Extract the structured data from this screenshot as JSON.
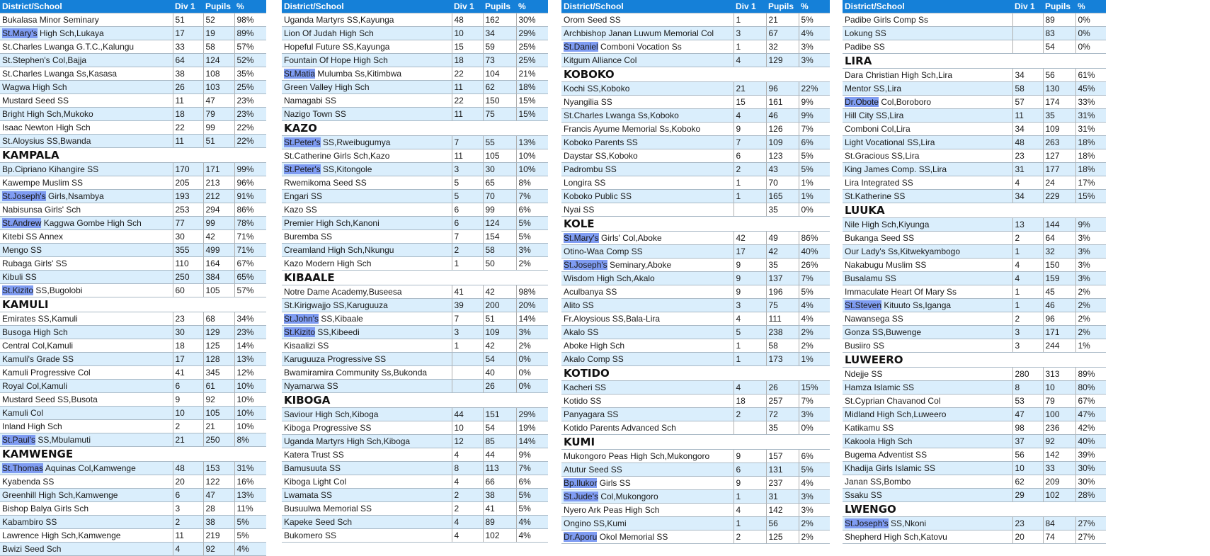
{
  "header": {
    "school": "District/School",
    "div1": "Div 1",
    "pupils": "Pupils",
    "pct": "%"
  },
  "columns": [
    [
      {
        "r": [
          "Bukalasa Minor Seminary",
          "51",
          "52",
          "98%"
        ]
      },
      {
        "r": [
          "St.Mary's",
          "High Sch,Lukaya",
          "17",
          "19",
          "89%"
        ]
      },
      {
        "r": [
          "St.Charles Lwanga G.T.C.,Kalungu",
          "33",
          "58",
          "57%"
        ]
      },
      {
        "r": [
          "St.Stephen's Col,Bajja",
          "64",
          "124",
          "52%"
        ]
      },
      {
        "r": [
          "St.Charles Lwanga Ss,Kasasa",
          "38",
          "108",
          "35%"
        ]
      },
      {
        "r": [
          "Wagwa High Sch",
          "26",
          "103",
          "25%"
        ]
      },
      {
        "r": [
          "Mustard Seed SS",
          "11",
          "47",
          "23%"
        ]
      },
      {
        "r": [
          "Bright High Sch,Mukoko",
          "18",
          "79",
          "23%"
        ]
      },
      {
        "r": [
          "Isaac Newton High Sch",
          "22",
          "99",
          "22%"
        ]
      },
      {
        "r": [
          "St.Aloysius SS,Bwanda",
          "11",
          "51",
          "22%"
        ]
      },
      {
        "d": "KAMPALA"
      },
      {
        "r": [
          "Bp.Cipriano Kihangire SS",
          "170",
          "171",
          "99%"
        ]
      },
      {
        "r": [
          "Kawempe Muslim SS",
          "205",
          "213",
          "96%"
        ]
      },
      {
        "r": [
          "St.Joseph's",
          "Girls,Nsambya",
          "193",
          "212",
          "91%"
        ]
      },
      {
        "r": [
          "Nabisunsa Girls' Sch",
          "253",
          "294",
          "86%"
        ]
      },
      {
        "r": [
          "St.Andrew",
          "Kaggwa Gombe High Sch",
          "77",
          "99",
          "78%"
        ]
      },
      {
        "r": [
          "Kitebi SS Annex",
          "30",
          "42",
          "71%"
        ]
      },
      {
        "r": [
          "Mengo SS",
          "355",
          "499",
          "71%"
        ]
      },
      {
        "r": [
          "Rubaga Girls' SS",
          "110",
          "164",
          "67%"
        ]
      },
      {
        "r": [
          "Kibuli SS",
          "250",
          "384",
          "65%"
        ]
      },
      {
        "r": [
          "St.Kizito",
          "SS,Bugolobi",
          "60",
          "105",
          "57%"
        ]
      },
      {
        "d": "KAMULI"
      },
      {
        "r": [
          "Emirates SS,Kamuli",
          "23",
          "68",
          "34%"
        ]
      },
      {
        "r": [
          "Busoga High Sch",
          "30",
          "129",
          "23%"
        ]
      },
      {
        "r": [
          "Central Col,Kamuli",
          "18",
          "125",
          "14%"
        ]
      },
      {
        "r": [
          "Kamuli's Grade SS",
          "17",
          "128",
          "13%"
        ]
      },
      {
        "r": [
          "Kamuli Progressive Col",
          "41",
          "345",
          "12%"
        ]
      },
      {
        "r": [
          "Royal Col,Kamuli",
          "6",
          "61",
          "10%"
        ]
      },
      {
        "r": [
          "Mustard Seed SS,Busota",
          "9",
          "92",
          "10%"
        ]
      },
      {
        "r": [
          "Kamuli Col",
          "10",
          "105",
          "10%"
        ]
      },
      {
        "r": [
          "Inland High Sch",
          "2",
          "21",
          "10%"
        ]
      },
      {
        "r": [
          "St.Paul's",
          "SS,Mbulamuti",
          "21",
          "250",
          "8%"
        ]
      },
      {
        "d": "KAMWENGE"
      },
      {
        "r": [
          "St.Thomas",
          "Aquinas Col,Kamwenge",
          "48",
          "153",
          "31%"
        ]
      },
      {
        "r": [
          "Kyabenda SS",
          "20",
          "122",
          "16%"
        ]
      },
      {
        "r": [
          "Greenhill High Sch,Kamwenge",
          "6",
          "47",
          "13%"
        ]
      },
      {
        "r": [
          "Bishop Balya Girls Sch",
          "3",
          "28",
          "11%"
        ]
      },
      {
        "r": [
          "Kabambiro SS",
          "2",
          "38",
          "5%"
        ]
      },
      {
        "r": [
          "Lawrence High Sch,Kamwenge",
          "11",
          "219",
          "5%"
        ]
      },
      {
        "r": [
          "Bwizi Seed Sch",
          "4",
          "92",
          "4%"
        ]
      }
    ],
    [
      {
        "r": [
          "Uganda Martyrs SS,Kayunga",
          "48",
          "162",
          "30%"
        ]
      },
      {
        "r": [
          "Lion Of Judah High Sch",
          "10",
          "34",
          "29%"
        ]
      },
      {
        "r": [
          "Hopeful Future SS,Kayunga",
          "15",
          "59",
          "25%"
        ]
      },
      {
        "r": [
          "Fountain Of Hope High Sch",
          "18",
          "73",
          "25%"
        ]
      },
      {
        "r": [
          "St.Matia",
          "Mulumba Ss,Kitimbwa",
          "22",
          "104",
          "21%"
        ]
      },
      {
        "r": [
          "Green Valley High Sch",
          "11",
          "62",
          "18%"
        ]
      },
      {
        "r": [
          "Namagabi SS",
          "22",
          "150",
          "15%"
        ]
      },
      {
        "r": [
          "Nazigo Town SS",
          "11",
          "75",
          "15%"
        ]
      },
      {
        "d": "KAZO"
      },
      {
        "r": [
          "St.Peter's",
          "SS,Rweibugumya",
          "7",
          "55",
          "13%"
        ]
      },
      {
        "r": [
          "St.Catherine Girls Sch,Kazo",
          "11",
          "105",
          "10%"
        ]
      },
      {
        "r": [
          "St.Peter's",
          "SS,Kitongole",
          "3",
          "30",
          "10%"
        ]
      },
      {
        "r": [
          "Rwemikoma Seed SS",
          "5",
          "65",
          "8%"
        ]
      },
      {
        "r": [
          "Engari SS",
          "5",
          "70",
          "7%"
        ]
      },
      {
        "r": [
          "Kazo SS",
          "6",
          "99",
          "6%"
        ]
      },
      {
        "r": [
          "Premier High Sch,Kanoni",
          "6",
          "124",
          "5%"
        ]
      },
      {
        "r": [
          "Buremba SS",
          "7",
          "154",
          "5%"
        ]
      },
      {
        "r": [
          "Creamland High Sch,Nkungu",
          "2",
          "58",
          "3%"
        ]
      },
      {
        "r": [
          "Kazo Modern High Sch",
          "1",
          "50",
          "2%"
        ]
      },
      {
        "d": "KIBAALE"
      },
      {
        "r": [
          "Notre Dame Academy,Buseesa",
          "41",
          "42",
          "98%"
        ]
      },
      {
        "r": [
          "St.Kirigwajjo SS,Karuguuza",
          "39",
          "200",
          "20%"
        ]
      },
      {
        "r": [
          "St.John's",
          "SS,Kibaale",
          "7",
          "51",
          "14%"
        ]
      },
      {
        "r": [
          "St.Kizito",
          "SS,Kibeedi",
          "3",
          "109",
          "3%"
        ]
      },
      {
        "r": [
          "Kisaalizi SS",
          "1",
          "42",
          "2%"
        ]
      },
      {
        "r": [
          "Karuguuza Progressive SS",
          "",
          "54",
          "0%"
        ]
      },
      {
        "r": [
          "Bwamiramira Community Ss,Bukonda",
          "",
          "40",
          "0%"
        ]
      },
      {
        "r": [
          "Nyamarwa SS",
          "",
          "26",
          "0%"
        ]
      },
      {
        "d": "KIBOGA"
      },
      {
        "r": [
          "Saviour High Sch,Kiboga",
          "44",
          "151",
          "29%"
        ]
      },
      {
        "r": [
          "Kiboga Progressive SS",
          "10",
          "54",
          "19%"
        ]
      },
      {
        "r": [
          "Uganda Martyrs High Sch,Kiboga",
          "12",
          "85",
          "14%"
        ]
      },
      {
        "r": [
          "Katera Trust SS",
          "4",
          "44",
          "9%"
        ]
      },
      {
        "r": [
          "Bamusuuta SS",
          "8",
          "113",
          "7%"
        ]
      },
      {
        "r": [
          "Kiboga Light Col",
          "4",
          "66",
          "6%"
        ]
      },
      {
        "r": [
          "Lwamata SS",
          "2",
          "38",
          "5%"
        ]
      },
      {
        "r": [
          "Busuulwa Memorial SS",
          "2",
          "41",
          "5%"
        ]
      },
      {
        "r": [
          "Kapeke Seed Sch",
          "4",
          "89",
          "4%"
        ]
      },
      {
        "r": [
          "Bukomero SS",
          "4",
          "102",
          "4%"
        ]
      }
    ],
    [
      {
        "r": [
          "Orom Seed SS",
          "1",
          "21",
          "5%"
        ]
      },
      {
        "r": [
          "Archbishop Janan Luwum Memorial Col",
          "3",
          "67",
          "4%"
        ]
      },
      {
        "r": [
          "St.Daniel",
          "Comboni Vocation Ss",
          "1",
          "32",
          "3%"
        ]
      },
      {
        "r": [
          "Kitgum Alliance Col",
          "4",
          "129",
          "3%"
        ]
      },
      {
        "d": "KOBOKO"
      },
      {
        "r": [
          "Kochi SS,Koboko",
          "21",
          "96",
          "22%"
        ]
      },
      {
        "r": [
          "Nyangilia SS",
          "15",
          "161",
          "9%"
        ]
      },
      {
        "r": [
          "St.Charles Lwanga Ss,Koboko",
          "4",
          "46",
          "9%"
        ]
      },
      {
        "r": [
          "Francis Ayume Memorial Ss,Koboko",
          "9",
          "126",
          "7%"
        ]
      },
      {
        "r": [
          "Koboko Parents SS",
          "7",
          "109",
          "6%"
        ]
      },
      {
        "r": [
          "Daystar SS,Koboko",
          "6",
          "123",
          "5%"
        ]
      },
      {
        "r": [
          "Padrombu SS",
          "2",
          "43",
          "5%"
        ]
      },
      {
        "r": [
          "Longira SS",
          "1",
          "70",
          "1%"
        ]
      },
      {
        "r": [
          "Koboko Public SS",
          "1",
          "165",
          "1%"
        ]
      },
      {
        "r": [
          "Nyai SS",
          "",
          "35",
          "0%"
        ]
      },
      {
        "d": "KOLE"
      },
      {
        "r": [
          "St.Mary's",
          "Girls' Col,Aboke",
          "42",
          "49",
          "86%"
        ]
      },
      {
        "r": [
          "Otino-Waa Comp SS",
          "17",
          "42",
          "40%"
        ]
      },
      {
        "r": [
          "St.Joseph's",
          "Seminary,Aboke",
          "9",
          "35",
          "26%"
        ]
      },
      {
        "r": [
          "Wisdom High Sch,Akalo",
          "9",
          "137",
          "7%"
        ]
      },
      {
        "r": [
          "Aculbanya SS",
          "9",
          "196",
          "5%"
        ]
      },
      {
        "r": [
          "Alito SS",
          "3",
          "75",
          "4%"
        ]
      },
      {
        "r": [
          "Fr.Aloysious SS,Bala-Lira",
          "4",
          "111",
          "4%"
        ]
      },
      {
        "r": [
          "Akalo SS",
          "5",
          "238",
          "2%"
        ]
      },
      {
        "r": [
          "Aboke High Sch",
          "1",
          "58",
          "2%"
        ]
      },
      {
        "r": [
          "Akalo Comp SS",
          "1",
          "173",
          "1%"
        ]
      },
      {
        "d": "KOTIDO"
      },
      {
        "r": [
          "Kacheri SS",
          "4",
          "26",
          "15%"
        ]
      },
      {
        "r": [
          "Kotido SS",
          "18",
          "257",
          "7%"
        ]
      },
      {
        "r": [
          "Panyagara SS",
          "2",
          "72",
          "3%"
        ]
      },
      {
        "r": [
          "Kotido Parents Advanced Sch",
          "",
          "35",
          "0%"
        ]
      },
      {
        "d": "KUMI"
      },
      {
        "r": [
          "Mukongoro Peas High Sch,Mukongoro",
          "9",
          "157",
          "6%"
        ]
      },
      {
        "r": [
          "Atutur Seed SS",
          "6",
          "131",
          "5%"
        ]
      },
      {
        "r": [
          "Bp.Ilukor",
          "Girls SS",
          "9",
          "237",
          "4%"
        ]
      },
      {
        "r": [
          "St.Jude's",
          "Col,Mukongoro",
          "1",
          "31",
          "3%"
        ]
      },
      {
        "r": [
          "Nyero Ark Peas High Sch",
          "4",
          "142",
          "3%"
        ]
      },
      {
        "r": [
          "Ongino SS,Kumi",
          "1",
          "56",
          "2%"
        ]
      },
      {
        "r": [
          "Dr.Aporu",
          "Okol Memorial SS",
          "2",
          "125",
          "2%"
        ]
      }
    ],
    [
      {
        "r": [
          "Padibe Girls Comp Ss",
          "",
          "89",
          "0%"
        ]
      },
      {
        "r": [
          "Lokung SS",
          "",
          "83",
          "0%"
        ]
      },
      {
        "r": [
          "Padibe SS",
          "",
          "54",
          "0%"
        ]
      },
      {
        "d": "LIRA"
      },
      {
        "r": [
          "Dara Christian High Sch,Lira",
          "34",
          "56",
          "61%"
        ]
      },
      {
        "r": [
          "Mentor SS,Lira",
          "58",
          "130",
          "45%"
        ]
      },
      {
        "r": [
          "Dr.Obote",
          "Col,Boroboro",
          "57",
          "174",
          "33%"
        ]
      },
      {
        "r": [
          "Hill City SS,Lira",
          "11",
          "35",
          "31%"
        ]
      },
      {
        "r": [
          "Comboni Col,Lira",
          "34",
          "109",
          "31%"
        ]
      },
      {
        "r": [
          "Light Vocational SS,Lira",
          "48",
          "263",
          "18%"
        ]
      },
      {
        "r": [
          "St.Gracious SS,Lira",
          "23",
          "127",
          "18%"
        ]
      },
      {
        "r": [
          "King James Comp. SS,Lira",
          "31",
          "177",
          "18%"
        ]
      },
      {
        "r": [
          "Lira Integrated SS",
          "4",
          "24",
          "17%"
        ]
      },
      {
        "r": [
          "St.Katherine SS",
          "34",
          "229",
          "15%"
        ]
      },
      {
        "d": "LUUKA"
      },
      {
        "r": [
          "Nile High Sch,Kiyunga",
          "13",
          "144",
          "9%"
        ]
      },
      {
        "r": [
          "Bukanga Seed SS",
          "2",
          "64",
          "3%"
        ]
      },
      {
        "r": [
          "Our Lady's Ss,Kitwekyambogo",
          "1",
          "32",
          "3%"
        ]
      },
      {
        "r": [
          "Nakabugu Muslim SS",
          "4",
          "150",
          "3%"
        ]
      },
      {
        "r": [
          "Busalamu SS",
          "4",
          "159",
          "3%"
        ]
      },
      {
        "r": [
          "Immaculate Heart Of Mary Ss",
          "1",
          "45",
          "2%"
        ]
      },
      {
        "r": [
          "St.Steven",
          "Kituuto Ss,Iganga",
          "1",
          "46",
          "2%"
        ]
      },
      {
        "r": [
          "Nawansega SS",
          "2",
          "96",
          "2%"
        ]
      },
      {
        "r": [
          "Gonza SS,Buwenge",
          "3",
          "171",
          "2%"
        ]
      },
      {
        "r": [
          "Busiiro SS",
          "3",
          "244",
          "1%"
        ]
      },
      {
        "d": "LUWEERO"
      },
      {
        "r": [
          "Ndejje SS",
          "280",
          "313",
          "89%"
        ]
      },
      {
        "r": [
          "Hamza Islamic SS",
          "8",
          "10",
          "80%"
        ]
      },
      {
        "r": [
          "St.Cyprian Chavanod Col",
          "53",
          "79",
          "67%"
        ]
      },
      {
        "r": [
          "Midland High Sch,Luweero",
          "47",
          "100",
          "47%"
        ]
      },
      {
        "r": [
          "Katikamu SS",
          "98",
          "236",
          "42%"
        ]
      },
      {
        "r": [
          "Kakoola High Sch",
          "37",
          "92",
          "40%"
        ]
      },
      {
        "r": [
          "Bugema Adventist SS",
          "56",
          "142",
          "39%"
        ]
      },
      {
        "r": [
          "Khadija Girls Islamic SS",
          "10",
          "33",
          "30%"
        ]
      },
      {
        "r": [
          "Janan SS,Bombo",
          "62",
          "209",
          "30%"
        ]
      },
      {
        "r": [
          "Ssaku SS",
          "29",
          "102",
          "28%"
        ]
      },
      {
        "d": "LWENGO"
      },
      {
        "r": [
          "St.Joseph's",
          "SS,Nkoni",
          "23",
          "84",
          "27%"
        ]
      },
      {
        "r": [
          "Shepherd High Sch,Katovu",
          "20",
          "74",
          "27%"
        ]
      }
    ]
  ]
}
